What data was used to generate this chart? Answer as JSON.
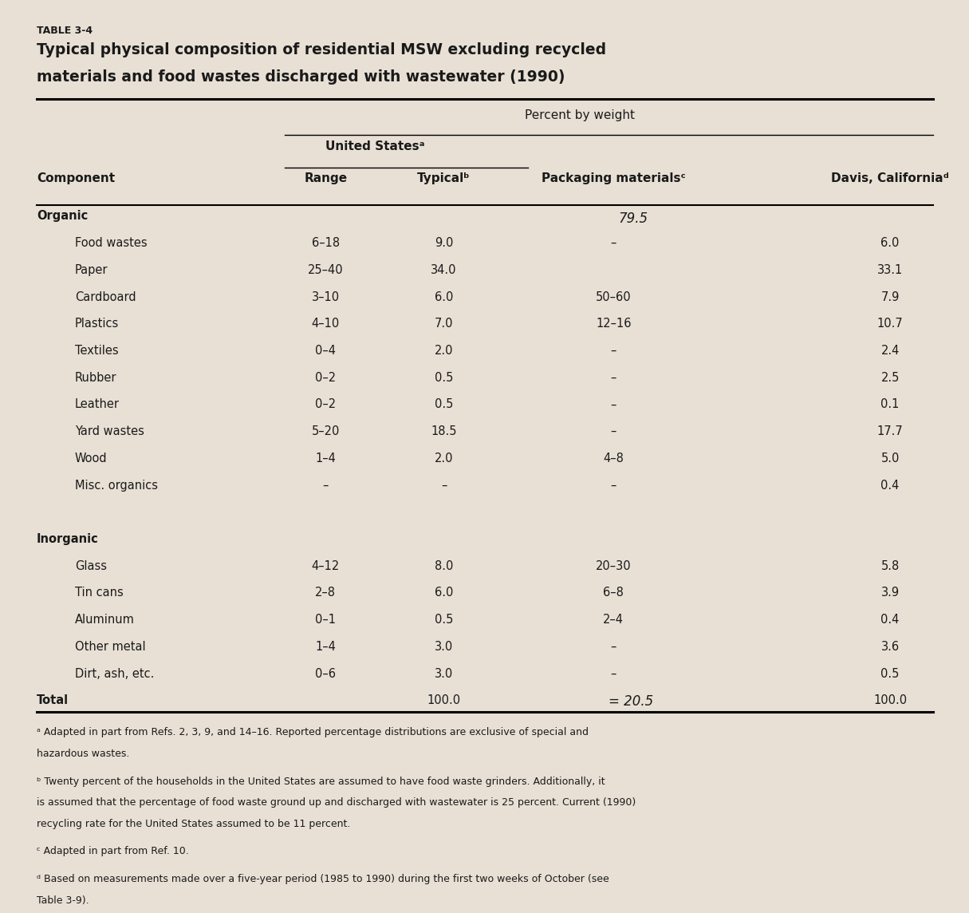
{
  "table_label": "TABLE 3-4",
  "title_line1": "Typical physical composition of residential MSW excluding recycled",
  "title_line2": "materials and food wastes discharged with wastewater (1990)",
  "subtitle": "Percent by weight",
  "us_header": "United Statesᵃ",
  "bg_color": "#e8e0d5",
  "text_color": "#1a1a1a",
  "rows": [
    {
      "comp": "Organic",
      "indent": false,
      "header": true,
      "range": "",
      "typical": "",
      "pkg": "",
      "davis": ""
    },
    {
      "comp": "Food wastes",
      "indent": true,
      "header": false,
      "range": "6–18",
      "typical": "9.0",
      "pkg": "–",
      "davis": "6.0"
    },
    {
      "comp": "Paper",
      "indent": true,
      "header": false,
      "range": "25–40",
      "typical": "34.0",
      "pkg": "",
      "davis": "33.1"
    },
    {
      "comp": "Cardboard",
      "indent": true,
      "header": false,
      "range": "3–10",
      "typical": "6.0",
      "pkg": "50–60",
      "davis": "7.9"
    },
    {
      "comp": "Plastics",
      "indent": true,
      "header": false,
      "range": "4–10",
      "typical": "7.0",
      "pkg": "12–16",
      "davis": "10.7"
    },
    {
      "comp": "Textiles",
      "indent": true,
      "header": false,
      "range": "0–4",
      "typical": "2.0",
      "pkg": "–",
      "davis": "2.4"
    },
    {
      "comp": "Rubber",
      "indent": true,
      "header": false,
      "range": "0–2",
      "typical": "0.5",
      "pkg": "–",
      "davis": "2.5"
    },
    {
      "comp": "Leather",
      "indent": true,
      "header": false,
      "range": "0–2",
      "typical": "0.5",
      "pkg": "–",
      "davis": "0.1"
    },
    {
      "comp": "Yard wastes",
      "indent": true,
      "header": false,
      "range": "5–20",
      "typical": "18.5",
      "pkg": "–",
      "davis": "17.7"
    },
    {
      "comp": "Wood",
      "indent": true,
      "header": false,
      "range": "1–4",
      "typical": "2.0",
      "pkg": "4–8",
      "davis": "5.0"
    },
    {
      "comp": "Misc. organics",
      "indent": true,
      "header": false,
      "range": "–",
      "typical": "–",
      "pkg": "–",
      "davis": "0.4"
    },
    {
      "comp": "",
      "indent": false,
      "header": false,
      "range": "",
      "typical": "",
      "pkg": "",
      "davis": ""
    },
    {
      "comp": "Inorganic",
      "indent": false,
      "header": true,
      "range": "",
      "typical": "",
      "pkg": "",
      "davis": ""
    },
    {
      "comp": "Glass",
      "indent": true,
      "header": false,
      "range": "4–12",
      "typical": "8.0",
      "pkg": "20–30",
      "davis": "5.8"
    },
    {
      "comp": "Tin cans",
      "indent": true,
      "header": false,
      "range": "2–8",
      "typical": "6.0",
      "pkg": "6–8",
      "davis": "3.9"
    },
    {
      "comp": "Aluminum",
      "indent": true,
      "header": false,
      "range": "0–1",
      "typical": "0.5",
      "pkg": "2–4",
      "davis": "0.4"
    },
    {
      "comp": "Other metal",
      "indent": true,
      "header": false,
      "range": "1–4",
      "typical": "3.0",
      "pkg": "–",
      "davis": "3.6"
    },
    {
      "comp": "Dirt, ash, etc.",
      "indent": true,
      "header": false,
      "range": "0–6",
      "typical": "3.0",
      "pkg": "–",
      "davis": "0.5"
    },
    {
      "comp": "Total",
      "indent": false,
      "header": true,
      "range": "",
      "typical": "100.0",
      "pkg": "",
      "davis": "100.0"
    }
  ],
  "packaging_note": "79.5",
  "packaging_total": "= 20.5",
  "footnotes": [
    "ᵃ Adapted in part from Refs. 2, 3, 9, and 14–16. Reported percentage distributions are exclusive of special and hazardous wastes.",
    "ᵇ Twenty percent of the households in the United States are assumed to have food waste grinders. Additionally, it is assumed that the percentage of food waste ground up and discharged with wastewater is 25 percent. Current (1990) recycling rate for the United States assumed to be 11 percent.",
    "ᶜ Adapted in part from Ref. 10.",
    "ᵈ Based on measurements made over a five-year period (1985 to 1990) during the first two weeks of October (see Table 3-9)."
  ]
}
